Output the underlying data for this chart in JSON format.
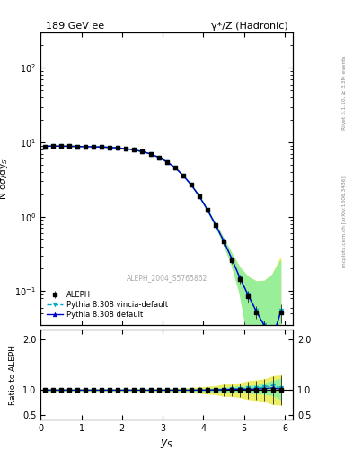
{
  "title_left": "189 GeV ee",
  "title_right": "γ*/Z (Hadronic)",
  "ylabel_main": "N dσ/dy$_S$",
  "ylabel_ratio": "Ratio to ALEPH",
  "xlabel": "y$_S$",
  "right_label_top": "Rivet 3.1.10, ≥ 3.3M events",
  "right_label_bottom": "mcplots.cern.ch [arXiv:1306.3436]",
  "watermark": "ALEPH_2004_S5765862",
  "data_x": [
    0.1,
    0.3,
    0.5,
    0.7,
    0.9,
    1.1,
    1.3,
    1.5,
    1.7,
    1.9,
    2.1,
    2.3,
    2.5,
    2.7,
    2.9,
    3.1,
    3.3,
    3.5,
    3.7,
    3.9,
    4.1,
    4.3,
    4.5,
    4.7,
    4.9,
    5.1,
    5.3,
    5.5,
    5.7,
    5.9
  ],
  "data_y": [
    8.8,
    8.9,
    8.85,
    8.82,
    8.78,
    8.73,
    8.68,
    8.62,
    8.52,
    8.38,
    8.18,
    7.88,
    7.48,
    6.98,
    6.28,
    5.48,
    4.58,
    3.58,
    2.68,
    1.88,
    1.23,
    0.76,
    0.46,
    0.26,
    0.145,
    0.086,
    0.052,
    0.033,
    0.022,
    0.052
  ],
  "data_yerr_abs": [
    0.09,
    0.08,
    0.07,
    0.07,
    0.07,
    0.07,
    0.07,
    0.07,
    0.07,
    0.07,
    0.07,
    0.08,
    0.08,
    0.09,
    0.1,
    0.1,
    0.11,
    0.11,
    0.11,
    0.1,
    0.08,
    0.06,
    0.05,
    0.03,
    0.02,
    0.015,
    0.01,
    0.007,
    0.006,
    0.015
  ],
  "pythia_default_y": [
    8.8,
    8.9,
    8.85,
    8.82,
    8.78,
    8.73,
    8.68,
    8.62,
    8.52,
    8.38,
    8.18,
    7.88,
    7.48,
    6.98,
    6.28,
    5.48,
    4.58,
    3.58,
    2.68,
    1.88,
    1.23,
    0.77,
    0.47,
    0.27,
    0.148,
    0.088,
    0.053,
    0.034,
    0.023,
    0.053
  ],
  "pythia_vincia_y": [
    8.8,
    8.9,
    8.85,
    8.82,
    8.78,
    8.73,
    8.68,
    8.62,
    8.52,
    8.38,
    8.18,
    7.88,
    7.48,
    6.98,
    6.28,
    5.48,
    4.58,
    3.58,
    2.68,
    1.88,
    1.24,
    0.77,
    0.47,
    0.27,
    0.149,
    0.089,
    0.054,
    0.035,
    0.024,
    0.054
  ],
  "pythia_default_band": [
    0.015,
    0.012,
    0.01,
    0.01,
    0.01,
    0.01,
    0.01,
    0.01,
    0.01,
    0.01,
    0.01,
    0.01,
    0.01,
    0.01,
    0.012,
    0.012,
    0.015,
    0.015,
    0.015,
    0.018,
    0.022,
    0.028,
    0.035,
    0.045,
    0.055,
    0.065,
    0.08,
    0.1,
    0.14,
    0.2
  ],
  "pythia_vincia_band": [
    0.015,
    0.012,
    0.01,
    0.01,
    0.01,
    0.01,
    0.01,
    0.01,
    0.01,
    0.01,
    0.01,
    0.01,
    0.01,
    0.01,
    0.012,
    0.012,
    0.015,
    0.015,
    0.015,
    0.018,
    0.022,
    0.028,
    0.035,
    0.045,
    0.055,
    0.065,
    0.08,
    0.1,
    0.14,
    0.22
  ],
  "ratio_default": [
    1.0,
    1.0,
    1.0,
    1.0,
    1.0,
    1.0,
    1.0,
    1.0,
    1.0,
    1.0,
    1.0,
    1.0,
    1.0,
    1.0,
    1.0,
    1.0,
    1.0,
    1.0,
    1.0,
    1.001,
    1.002,
    1.005,
    1.01,
    1.02,
    1.018,
    1.016,
    1.019,
    1.03,
    1.045,
    1.019
  ],
  "ratio_vincia": [
    1.0,
    1.0,
    1.0,
    1.0,
    1.0,
    1.0,
    1.0,
    1.0,
    1.0,
    1.0,
    1.0,
    1.0,
    1.0,
    1.0,
    1.0,
    1.0,
    1.0,
    1.0,
    1.0,
    1.001,
    1.008,
    1.008,
    1.013,
    1.023,
    1.028,
    1.035,
    1.038,
    1.061,
    1.091,
    1.038
  ],
  "ratio_band_default": [
    0.015,
    0.012,
    0.01,
    0.01,
    0.01,
    0.01,
    0.01,
    0.01,
    0.01,
    0.01,
    0.01,
    0.01,
    0.01,
    0.01,
    0.012,
    0.012,
    0.015,
    0.015,
    0.015,
    0.018,
    0.022,
    0.028,
    0.035,
    0.045,
    0.055,
    0.065,
    0.08,
    0.1,
    0.14,
    0.2
  ],
  "ratio_band_vincia": [
    0.015,
    0.012,
    0.01,
    0.01,
    0.01,
    0.01,
    0.01,
    0.01,
    0.01,
    0.01,
    0.01,
    0.01,
    0.01,
    0.01,
    0.012,
    0.012,
    0.015,
    0.015,
    0.015,
    0.018,
    0.022,
    0.028,
    0.035,
    0.045,
    0.055,
    0.065,
    0.08,
    0.1,
    0.14,
    0.22
  ],
  "aleph_ratio_err": [
    0.01,
    0.009,
    0.008,
    0.008,
    0.008,
    0.008,
    0.008,
    0.008,
    0.008,
    0.008,
    0.009,
    0.01,
    0.011,
    0.013,
    0.016,
    0.018,
    0.024,
    0.031,
    0.041,
    0.053,
    0.065,
    0.079,
    0.109,
    0.115,
    0.138,
    0.175,
    0.192,
    0.212,
    0.273,
    0.288
  ],
  "data_color": "#000000",
  "pythia_default_color": "#0000cc",
  "pythia_vincia_color": "#00aacc",
  "pythia_default_band_color": "#99ee99",
  "pythia_vincia_band_color": "#eeee66",
  "xlim": [
    0,
    6.2
  ],
  "ylim_main": [
    0.035,
    300
  ],
  "ylim_ratio": [
    0.42,
    2.2
  ],
  "ratio_yticks": [
    0.5,
    1.0,
    2.0
  ]
}
